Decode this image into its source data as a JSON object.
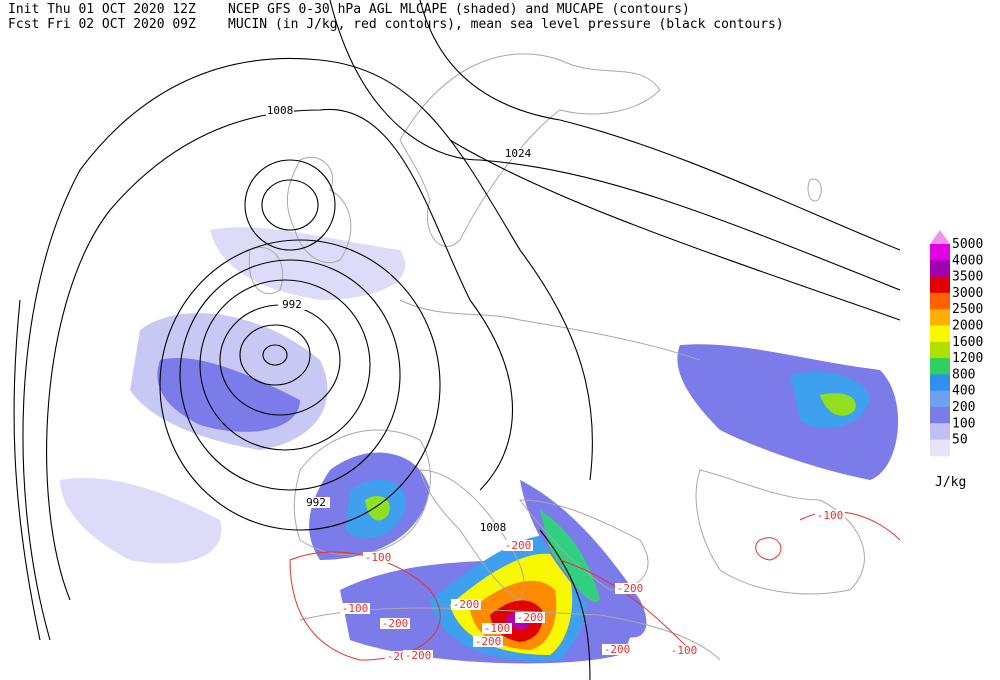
{
  "header": {
    "init": "Init  Thu 01 OCT 2020 12Z",
    "product": "NCEP GFS 0-30 hPa AGL MLCAPE (shaded) and MUCAPE (contours)",
    "forecast": "Fcst Fri 02 OCT 2020 09Z",
    "description": "MUCIN (in J/kg, red contours), mean sea level pressure (black contours)"
  },
  "legend": {
    "extend_color": "#f090f0",
    "unit": "J/kg",
    "levels": [
      {
        "label": "5000",
        "color": "#e000e0"
      },
      {
        "label": "4000",
        "color": "#a000b0"
      },
      {
        "label": "3500",
        "color": "#e00000"
      },
      {
        "label": "3000",
        "color": "#ff6000"
      },
      {
        "label": "2500",
        "color": "#ffb000"
      },
      {
        "label": "2000",
        "color": "#f8f800"
      },
      {
        "label": "1600",
        "color": "#b0e000"
      },
      {
        "label": "1200",
        "color": "#30d060"
      },
      {
        "label": "800",
        "color": "#3090f0"
      },
      {
        "label": "400",
        "color": "#6fa0f0"
      },
      {
        "label": "200",
        "color": "#7b7bea"
      },
      {
        "label": "100",
        "color": "#c0c0f4"
      },
      {
        "label": "50",
        "color": "#e4e4fa"
      }
    ]
  },
  "contour_labels": {
    "pressure": [
      "1008",
      "1024",
      "992",
      "992",
      "1008"
    ],
    "cin": [
      "-100",
      "-200",
      "-100",
      "-200",
      "-200",
      "-100",
      "-200",
      "-200",
      "-100",
      "-200",
      "-200",
      "-200",
      "-200",
      "-100"
    ]
  }
}
